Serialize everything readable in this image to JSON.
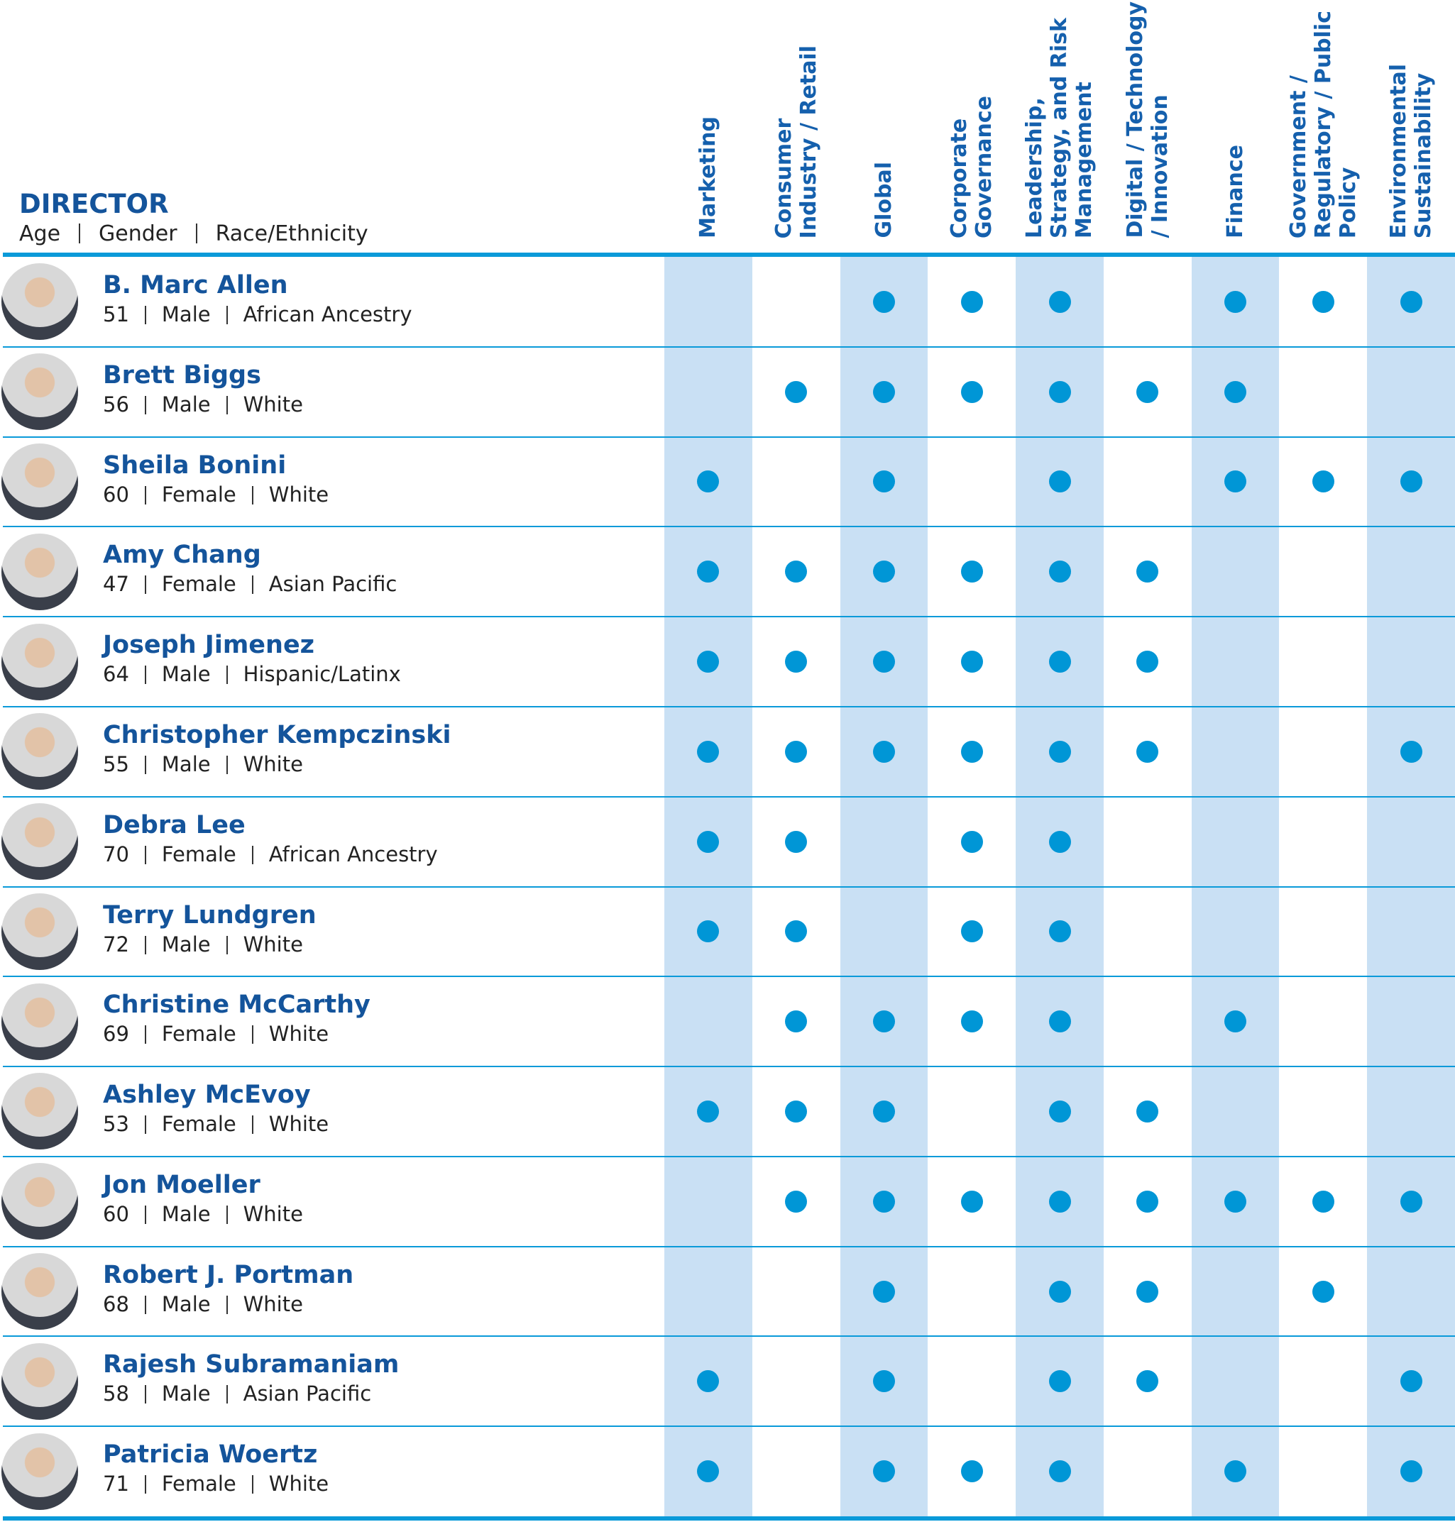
{
  "header": {
    "title": "DIRECTOR",
    "subtitle": [
      "Age",
      "Gender",
      "Race/Ethnicity"
    ]
  },
  "columns": [
    {
      "label_lines": [
        "Marketing"
      ]
    },
    {
      "label_lines": [
        "Consumer",
        "Industry / Retail"
      ]
    },
    {
      "label_lines": [
        "Global"
      ]
    },
    {
      "label_lines": [
        "Corporate",
        "Governance"
      ]
    },
    {
      "label_lines": [
        "Leadership,",
        "Strategy, and Risk",
        "Management"
      ]
    },
    {
      "label_lines": [
        "Digital / Technology",
        "/ Innovation"
      ]
    },
    {
      "label_lines": [
        "Finance"
      ]
    },
    {
      "label_lines": [
        "Government /",
        "Regulatory / Public",
        "Policy"
      ]
    },
    {
      "label_lines": [
        "Environmental",
        "Sustainability"
      ]
    }
  ],
  "rows": [
    {
      "name": "B. Marc Allen",
      "age": "51",
      "gender": "Male",
      "ethnicity": "African Ancestry",
      "skills": [
        false,
        false,
        true,
        true,
        true,
        false,
        true,
        true,
        true
      ]
    },
    {
      "name": "Brett Biggs",
      "age": "56",
      "gender": "Male",
      "ethnicity": "White",
      "skills": [
        false,
        true,
        true,
        true,
        true,
        true,
        true,
        false,
        false
      ]
    },
    {
      "name": "Sheila Bonini",
      "age": "60",
      "gender": "Female",
      "ethnicity": "White",
      "skills": [
        true,
        false,
        true,
        false,
        true,
        false,
        true,
        true,
        true
      ]
    },
    {
      "name": "Amy Chang",
      "age": "47",
      "gender": "Female",
      "ethnicity": "Asian Pacific",
      "skills": [
        true,
        true,
        true,
        true,
        true,
        true,
        false,
        false,
        false
      ]
    },
    {
      "name": "Joseph Jimenez",
      "age": "64",
      "gender": "Male",
      "ethnicity": "Hispanic/Latinx",
      "skills": [
        true,
        true,
        true,
        true,
        true,
        true,
        false,
        false,
        false
      ]
    },
    {
      "name": "Christopher Kempczinski",
      "age": "55",
      "gender": "Male",
      "ethnicity": "White",
      "skills": [
        true,
        true,
        true,
        true,
        true,
        true,
        false,
        false,
        true
      ]
    },
    {
      "name": "Debra Lee",
      "age": "70",
      "gender": "Female",
      "ethnicity": "African Ancestry",
      "skills": [
        true,
        true,
        false,
        true,
        true,
        false,
        false,
        false,
        false
      ]
    },
    {
      "name": "Terry Lundgren",
      "age": "72",
      "gender": "Male",
      "ethnicity": "White",
      "skills": [
        true,
        true,
        false,
        true,
        true,
        false,
        false,
        false,
        false
      ]
    },
    {
      "name": "Christine McCarthy",
      "age": "69",
      "gender": "Female",
      "ethnicity": "White",
      "skills": [
        false,
        true,
        true,
        true,
        true,
        false,
        true,
        false,
        false
      ]
    },
    {
      "name": "Ashley McEvoy",
      "age": "53",
      "gender": "Female",
      "ethnicity": "White",
      "skills": [
        true,
        true,
        true,
        false,
        true,
        true,
        false,
        false,
        false
      ]
    },
    {
      "name": "Jon Moeller",
      "age": "60",
      "gender": "Male",
      "ethnicity": "White",
      "skills": [
        false,
        true,
        true,
        true,
        true,
        true,
        true,
        true,
        true
      ]
    },
    {
      "name": "Robert J. Portman",
      "age": "68",
      "gender": "Male",
      "ethnicity": "White",
      "skills": [
        false,
        false,
        true,
        false,
        true,
        true,
        false,
        true,
        false
      ]
    },
    {
      "name": "Rajesh Subramaniam",
      "age": "58",
      "gender": "Male",
      "ethnicity": "Asian Pacific",
      "skills": [
        true,
        false,
        true,
        false,
        true,
        true,
        false,
        false,
        true
      ]
    },
    {
      "name": "Patricia Woertz",
      "age": "71",
      "gender": "Female",
      "ethnicity": "White",
      "skills": [
        true,
        false,
        true,
        true,
        true,
        false,
        true,
        false,
        true
      ]
    }
  ]
}
